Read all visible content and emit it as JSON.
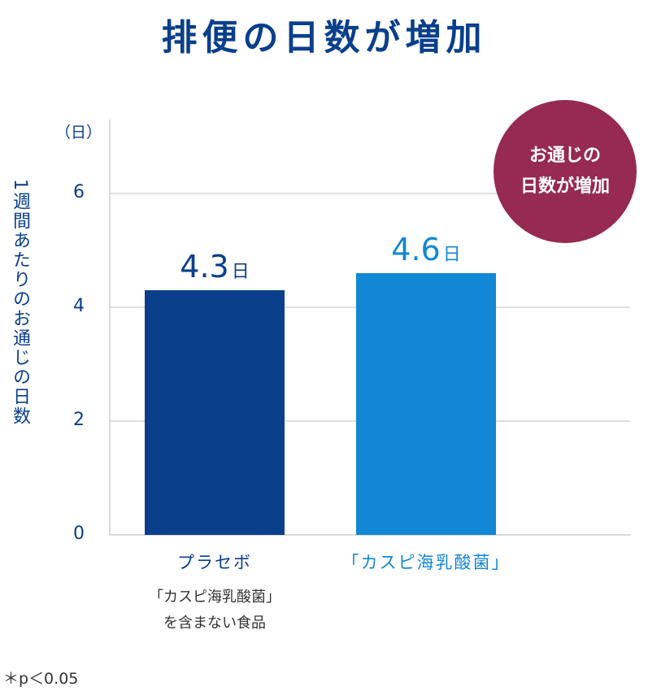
{
  "title": "排便の日数が増加",
  "unit_label": "（日）",
  "badge": {
    "line1": "お通じの",
    "line2": "日数が増加"
  },
  "footnote": "＊p＜0.05",
  "colors": {
    "title": "#0a3f8c",
    "placebo": "#0a3f8c",
    "caspian": "#1287d4",
    "badge": "#962a51"
  },
  "chart_data": {
    "type": "bar",
    "ylabel": "1週間あたりのお通じの日数",
    "ylim": [
      0,
      7.3
    ],
    "yticks": [
      0,
      2,
      4,
      6
    ],
    "grid": true,
    "categories": [
      "プラセボ",
      "「カスピ海乳酸菌」"
    ],
    "category_sublabels": [
      "「カスピ海乳酸菌」",
      "を含まない食品"
    ],
    "values": [
      4.3,
      4.6
    ],
    "data_labels": [
      {
        "value": "4.3",
        "unit": "日"
      },
      {
        "value": "4.6",
        "unit": "日"
      }
    ]
  }
}
